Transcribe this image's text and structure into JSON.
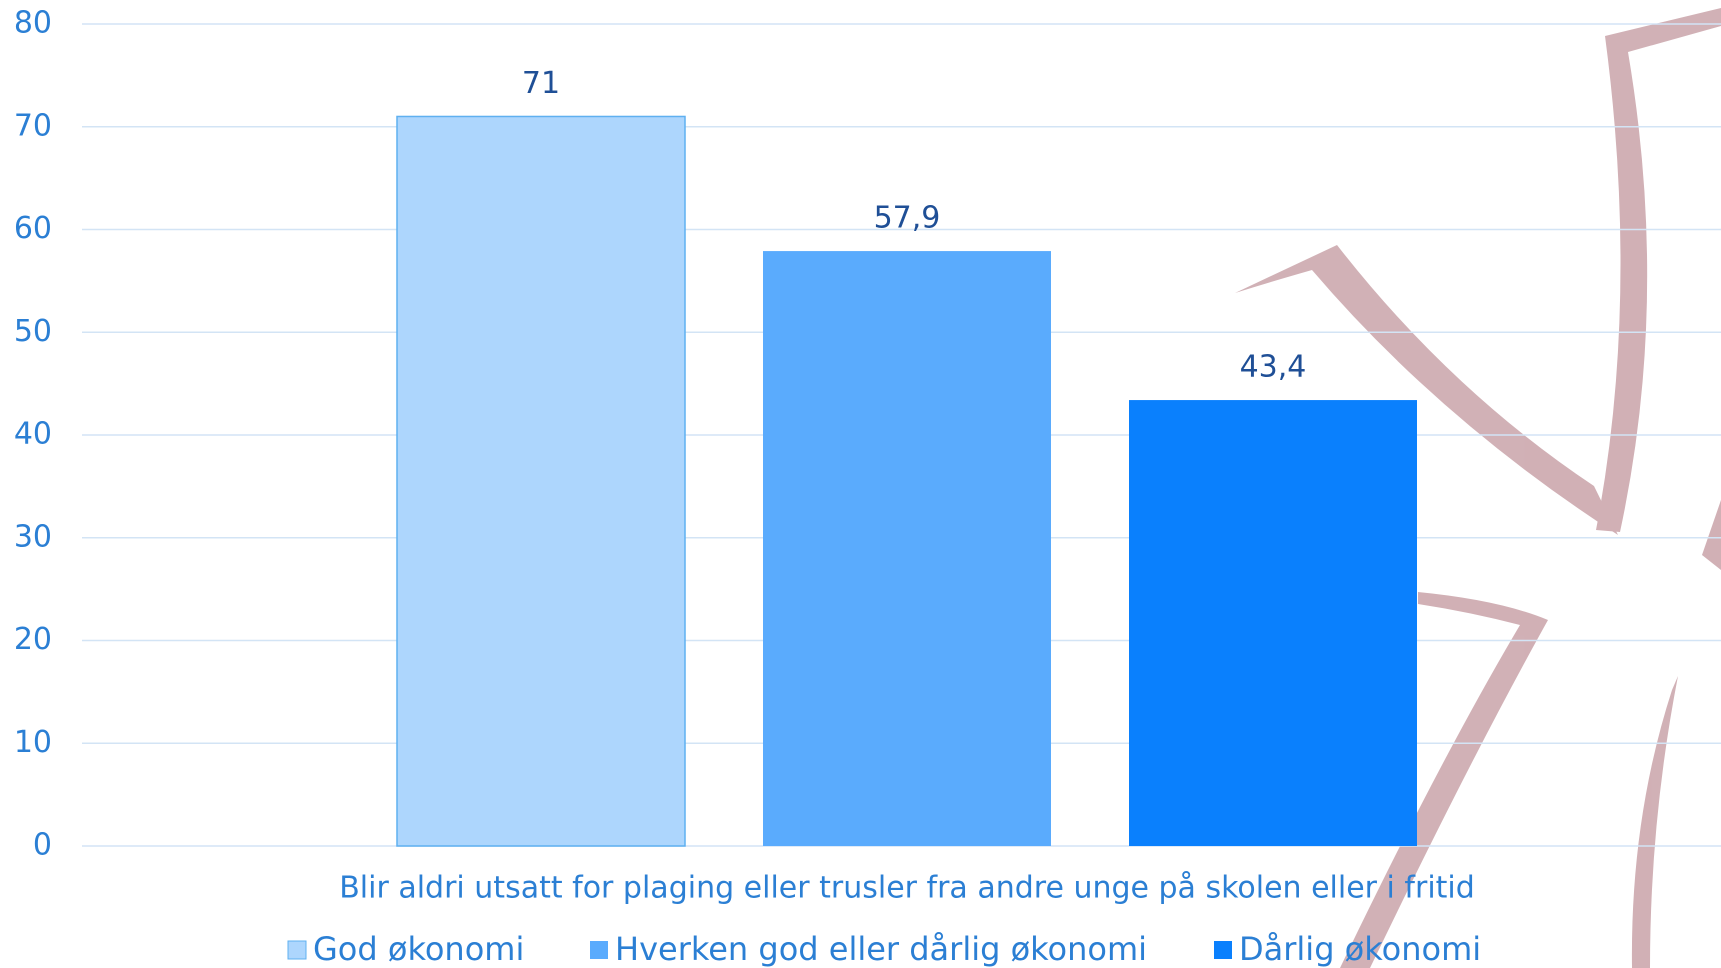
{
  "chart_data": {
    "type": "bar",
    "categories": [
      "Blir aldri utsatt for plaging eller trusler fra andre unge på skolen eller i fritid"
    ],
    "series": [
      {
        "name": "God økonomi",
        "color": "#add6fd",
        "values": [
          71
        ],
        "value_labels": [
          "71"
        ]
      },
      {
        "name": "Hverken god eller dårlig økonomi",
        "color": "#5aabfd",
        "values": [
          57.9
        ],
        "value_labels": [
          "57,9"
        ]
      },
      {
        "name": "Dårlig økonomi",
        "color": "#0a80fd",
        "values": [
          43.4
        ],
        "value_labels": [
          "43,4"
        ]
      }
    ],
    "ylim": [
      0,
      80
    ],
    "yticks": [
      0,
      10,
      20,
      30,
      40,
      50,
      60,
      70,
      80
    ],
    "grid": true,
    "legend": "bottom"
  }
}
